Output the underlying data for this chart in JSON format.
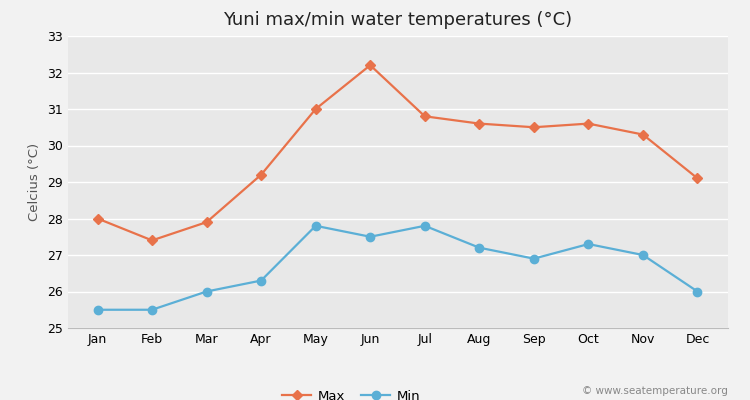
{
  "title": "Yuni max/min water temperatures (°C)",
  "xlabel": "",
  "ylabel": "Celcius (°C)",
  "months": [
    "Jan",
    "Feb",
    "Mar",
    "Apr",
    "May",
    "Jun",
    "Jul",
    "Aug",
    "Sep",
    "Oct",
    "Nov",
    "Dec"
  ],
  "max_values": [
    28.0,
    27.4,
    27.9,
    29.2,
    31.0,
    32.2,
    30.8,
    30.6,
    30.5,
    30.6,
    30.3,
    29.1
  ],
  "min_values": [
    25.5,
    25.5,
    26.0,
    26.3,
    27.8,
    27.5,
    27.8,
    27.2,
    26.9,
    27.3,
    27.0,
    26.0
  ],
  "max_color": "#e8724a",
  "min_color": "#5bafd6",
  "ylim": [
    25,
    33
  ],
  "yticks": [
    25,
    26,
    27,
    28,
    29,
    30,
    31,
    32,
    33
  ],
  "background_color": "#f2f2f2",
  "plot_bg_color": "#e8e8e8",
  "grid_color": "#ffffff",
  "watermark": "© www.seatemperature.org",
  "legend_labels": [
    "Max",
    "Min"
  ],
  "title_fontsize": 13,
  "label_fontsize": 9.5,
  "tick_fontsize": 9,
  "watermark_fontsize": 7.5,
  "marker_max": "D",
  "marker_min": "o",
  "marker_size_max": 5,
  "marker_size_min": 6,
  "line_width": 1.6
}
